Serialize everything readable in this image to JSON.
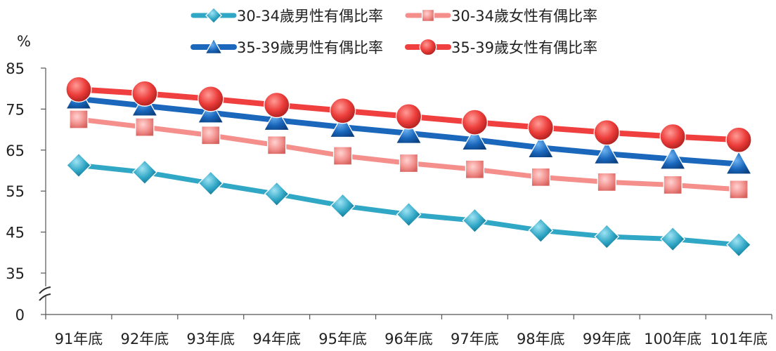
{
  "chart_data": {
    "type": "line",
    "ylabel": "%",
    "categories": [
      "91年底",
      "92年底",
      "93年底",
      "94年底",
      "95年底",
      "96年底",
      "97年底",
      "98年底",
      "99年底",
      "100年底",
      "101年底"
    ],
    "y_ticks": [
      "0",
      "35",
      "45",
      "55",
      "65",
      "75",
      "85"
    ],
    "ylim": [
      35,
      85
    ],
    "axis_break": true,
    "legend_position": "top",
    "series": [
      {
        "name": "30-34歲男性有偶比率",
        "marker": "diamond",
        "color": "#31a7c6",
        "values": [
          61.3,
          59.6,
          56.9,
          54.3,
          51.4,
          49.3,
          47.8,
          45.4,
          43.9,
          43.3,
          41.9
        ]
      },
      {
        "name": "30-34歲女性有偶比率",
        "marker": "square",
        "color": "#f48f8c",
        "values": [
          72.5,
          70.6,
          68.6,
          66.2,
          63.6,
          61.8,
          60.3,
          58.4,
          57.2,
          56.5,
          55.4
        ]
      },
      {
        "name": "35-39歲男性有偶比率",
        "marker": "triangle",
        "color": "#1a67bc",
        "values": [
          77.5,
          75.8,
          74.1,
          72.3,
          70.6,
          69.1,
          67.5,
          65.6,
          64.1,
          62.8,
          61.6
        ]
      },
      {
        "name": "35-39歲女性有偶比率",
        "marker": "circle",
        "color": "#ef3f3f",
        "values": [
          79.8,
          78.8,
          77.5,
          76.0,
          74.6,
          73.2,
          71.8,
          70.5,
          69.3,
          68.3,
          67.5
        ]
      }
    ]
  }
}
